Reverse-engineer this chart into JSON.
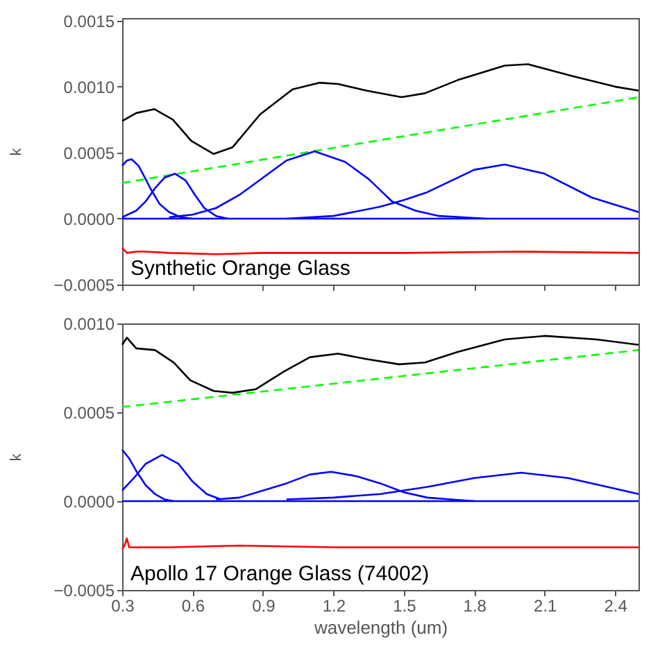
{
  "chart_data": [
    {
      "type": "line",
      "ylabel": "k",
      "annotations": [
        "Synthetic Orange Glass"
      ],
      "xlim": [
        0.3,
        2.5
      ],
      "ylim": [
        -0.0005,
        0.00152
      ],
      "xticks": [
        0.3,
        0.6,
        0.9,
        1.2,
        1.5,
        1.8,
        2.1,
        2.4
      ],
      "yticks": [
        {
          "value": -0.0005,
          "label": "−0.0005"
        },
        {
          "value": 0,
          "label": "0.0000"
        },
        {
          "value": 0.0005,
          "label": "0.0005"
        },
        {
          "value": 0.001,
          "label": "0.0010"
        },
        {
          "value": 0.0015,
          "label": "0.0015"
        }
      ],
      "tick_labels": "y",
      "grid": false,
      "series": [
        {
          "color": "#000000",
          "x": [
            0.3,
            0.36,
            0.437,
            0.516,
            0.594,
            0.69,
            0.77,
            0.888,
            1.026,
            1.14,
            1.22,
            1.34,
            1.49,
            1.59,
            1.73,
            1.93,
            2.03,
            2.22,
            2.4,
            2.5
          ],
          "values": [
            0.00074,
            0.0008,
            0.00083,
            0.00075,
            0.00059,
            0.00049,
            0.00054,
            0.00079,
            0.00098,
            0.00103,
            0.00102,
            0.00097,
            0.00092,
            0.00095,
            0.00105,
            0.00116,
            0.00117,
            0.00108,
            0.001,
            0.00097
          ]
        },
        {
          "color": "#00ff00",
          "line_style": "dashed",
          "x": [
            0.3,
            2.5
          ],
          "values": [
            0.00027,
            0.00092
          ]
        },
        {
          "color": "#0000ff",
          "x": [
            0.3,
            0.32,
            0.34,
            0.37,
            0.4,
            0.42,
            0.46,
            0.5,
            0.55,
            0.6
          ],
          "values": [
            0.0004,
            0.00044,
            0.00045,
            0.0004,
            0.0003,
            0.00023,
            0.00011,
            5e-05,
            1e-05,
            0
          ]
        },
        {
          "color": "#0000ff",
          "x": [
            0.3,
            0.36,
            0.4,
            0.44,
            0.48,
            0.525,
            0.57,
            0.61,
            0.65,
            0.7,
            0.75
          ],
          "values": [
            1e-05,
            6e-05,
            0.00013,
            0.00023,
            0.00031,
            0.00034,
            0.00029,
            0.00018,
            8e-05,
            2e-05,
            0
          ]
        },
        {
          "color": "#0000ff",
          "x": [
            0.5,
            0.6,
            0.7,
            0.8,
            0.9,
            1.0,
            1.12,
            1.25,
            1.35,
            1.45,
            1.55,
            1.65,
            1.75,
            1.85
          ],
          "values": [
            1e-05,
            3e-05,
            8e-05,
            0.00018,
            0.00031,
            0.00044,
            0.00051,
            0.00043,
            0.0003,
            0.00013,
            6e-05,
            2e-05,
            1e-05,
            0
          ]
        },
        {
          "color": "#0000ff",
          "x": [
            1.0,
            1.2,
            1.4,
            1.5,
            1.6,
            1.8,
            1.93,
            2.1,
            2.3,
            2.5
          ],
          "values": [
            0,
            2e-05,
            9e-05,
            0.00014,
            0.0002,
            0.00037,
            0.00041,
            0.00034,
            0.00016,
            5e-05
          ]
        },
        {
          "color": "#0000ff",
          "x": [
            0.3,
            2.5
          ],
          "values": [
            0,
            0
          ]
        },
        {
          "color": "#ff0000",
          "x": [
            0.3,
            0.32,
            0.36,
            0.4,
            0.5,
            0.7,
            0.9,
            1.2,
            1.5,
            2.0,
            2.5
          ],
          "values": [
            -0.00022,
            -0.00026,
            -0.00025,
            -0.00025,
            -0.00026,
            -0.00027,
            -0.00026,
            -0.00026,
            -0.00026,
            -0.00025,
            -0.00026
          ]
        }
      ]
    },
    {
      "type": "line",
      "xlabel": "wavelength (um)",
      "ylabel": "k",
      "annotations": [
        "Apollo 17 Orange Glass (74002)"
      ],
      "xlim": [
        0.3,
        2.5
      ],
      "ylim": [
        -0.0005,
        0.001
      ],
      "xticks": [
        0.3,
        0.6,
        0.9,
        1.2,
        1.5,
        1.8,
        2.1,
        2.4
      ],
      "yticks": [
        {
          "value": -0.0005,
          "label": "−0.0005"
        },
        {
          "value": 0,
          "label": "0.0000"
        },
        {
          "value": 0.0005,
          "label": "0.0005"
        },
        {
          "value": 0.001,
          "label": "0.0010"
        }
      ],
      "grid": false,
      "series": [
        {
          "color": "#000000",
          "x": [
            0.3,
            0.32,
            0.36,
            0.44,
            0.52,
            0.59,
            0.69,
            0.77,
            0.87,
            0.99,
            1.1,
            1.22,
            1.34,
            1.48,
            1.59,
            1.73,
            1.93,
            2.1,
            2.32,
            2.5
          ],
          "values": [
            0.00088,
            0.00092,
            0.00086,
            0.00085,
            0.00078,
            0.00068,
            0.00062,
            0.00061,
            0.00063,
            0.00073,
            0.00081,
            0.00083,
            0.0008,
            0.00077,
            0.00078,
            0.00084,
            0.00091,
            0.00093,
            0.00091,
            0.00088
          ]
        },
        {
          "color": "#00ff00",
          "line_style": "dashed",
          "x": [
            0.3,
            2.5
          ],
          "values": [
            0.00053,
            0.00085
          ]
        },
        {
          "color": "#0000ff",
          "x": [
            0.3,
            0.33,
            0.36,
            0.4,
            0.44,
            0.48,
            0.52
          ],
          "values": [
            0.00029,
            0.00024,
            0.00017,
            9e-05,
            4e-05,
            1e-05,
            0
          ]
        },
        {
          "color": "#0000ff",
          "x": [
            0.3,
            0.35,
            0.4,
            0.47,
            0.54,
            0.6,
            0.66,
            0.72
          ],
          "values": [
            6e-05,
            0.00013,
            0.00021,
            0.00026,
            0.00021,
            0.00011,
            4e-05,
            1e-05
          ]
        },
        {
          "color": "#0000ff",
          "x": [
            0.7,
            0.8,
            0.9,
            1.0,
            1.1,
            1.19,
            1.3,
            1.4,
            1.5,
            1.6,
            1.7,
            1.8
          ],
          "values": [
            1e-05,
            2e-05,
            6e-05,
            0.0001,
            0.00015,
            0.000165,
            0.00014,
            0.0001,
            5e-05,
            2e-05,
            1e-05,
            0
          ]
        },
        {
          "color": "#0000ff",
          "x": [
            1.0,
            1.2,
            1.4,
            1.6,
            1.8,
            2.0,
            2.2,
            2.4,
            2.5
          ],
          "values": [
            1e-05,
            2e-05,
            4e-05,
            8e-05,
            0.00013,
            0.00016,
            0.00013,
            7e-05,
            4e-05
          ]
        },
        {
          "color": "#0000ff",
          "x": [
            0.3,
            2.5
          ],
          "values": [
            0,
            0
          ]
        },
        {
          "color": "#ff0000",
          "x": [
            0.3,
            0.31,
            0.32,
            0.33,
            0.35,
            0.5,
            0.8,
            1.2,
            1.6,
            2.0,
            2.5
          ],
          "values": [
            -0.00027,
            -0.00025,
            -0.00021,
            -0.00026,
            -0.00026,
            -0.00026,
            -0.00025,
            -0.00026,
            -0.00026,
            -0.00026,
            -0.00026
          ]
        }
      ]
    }
  ]
}
